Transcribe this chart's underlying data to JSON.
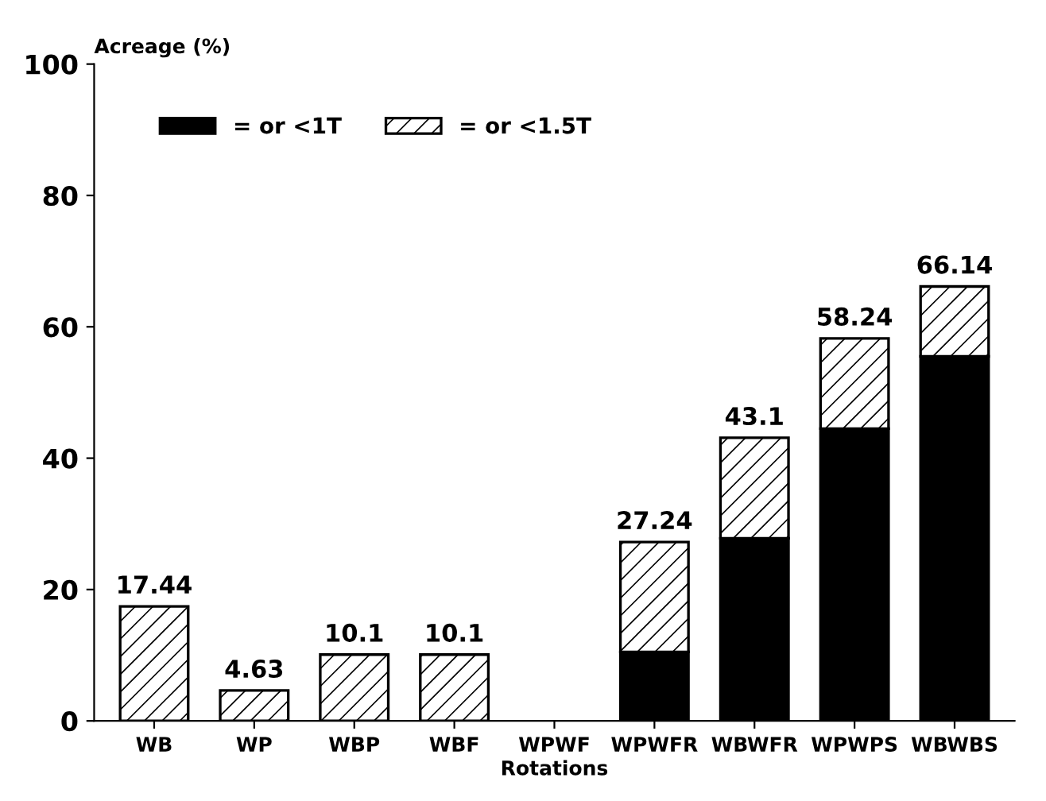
{
  "chart_data": {
    "type": "bar",
    "stacked": true,
    "ylabel": "Acreage (%)",
    "xlabel": "Rotations",
    "categories": [
      "WB",
      "WP",
      "WBP",
      "WBF",
      "WPWF",
      "WPWFR",
      "WBWFR",
      "WPWPS",
      "WBWBS"
    ],
    "series": [
      {
        "name": "= or <1T",
        "color": "#000000",
        "values": [
          null,
          null,
          null,
          null,
          null,
          10.5,
          27.8,
          44.5,
          55.5
        ]
      },
      {
        "name": "= or <1.5T",
        "color": "#000000",
        "values": [
          17.44,
          4.63,
          10.1,
          10.1,
          null,
          16.74,
          15.3,
          13.74,
          10.64
        ]
      }
    ],
    "totals": [
      "17.44",
      "4.63",
      "10.1",
      "10.1",
      null,
      "27.24",
      "43.1",
      "58.24",
      "66.14"
    ],
    "ylim": [
      0,
      100
    ],
    "yticks": [
      0,
      20,
      40,
      60,
      80,
      100
    ],
    "grid": false,
    "legend": "top left"
  }
}
